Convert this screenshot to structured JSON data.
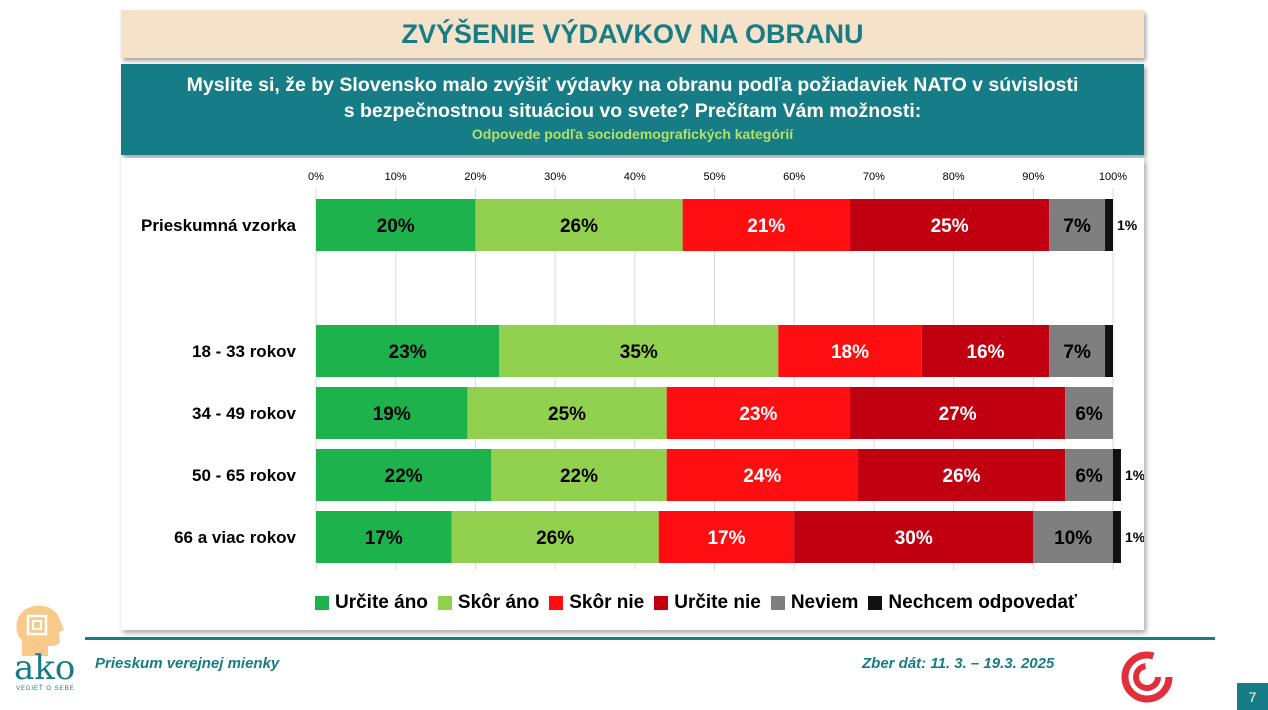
{
  "header": {
    "title": "ZVÝŠENIE VÝDAVKOV NA OBRANU",
    "question_line1": "Myslite si, že by Slovensko malo zvýšiť výdavky na obranu podľa požiadaviek NATO v súvislosti",
    "question_line2": "s bezpečnostnou situáciou vo svete? Prečítam Vám možnosti:",
    "subtitle": "Odpovede podľa sociodemografických kategórií"
  },
  "chart_data": {
    "type": "bar",
    "orientation": "horizontal",
    "stacked": true,
    "percent_scale": true,
    "xlim": [
      0,
      100
    ],
    "x_ticks": [
      "0%",
      "10%",
      "20%",
      "30%",
      "40%",
      "50%",
      "60%",
      "70%",
      "80%",
      "90%",
      "100%"
    ],
    "grid": true,
    "legend_position": "bottom",
    "categories": [
      "Prieskumná vzorka",
      "18 - 33 rokov",
      "34 - 49 rokov",
      "50 - 65 rokov",
      "66 a viac rokov"
    ],
    "series": [
      {
        "name": "Určite áno",
        "color": "#1db24b",
        "label_color": "#000000",
        "values": [
          20,
          23,
          19,
          22,
          17
        ],
        "labels": [
          "20%",
          "23%",
          "19%",
          "22%",
          "17%"
        ]
      },
      {
        "name": "Skôr áno",
        "color": "#92d050",
        "label_color": "#000000",
        "values": [
          26,
          35,
          25,
          22,
          26
        ],
        "labels": [
          "26%",
          "35%",
          "25%",
          "22%",
          "26%"
        ]
      },
      {
        "name": "Skôr nie",
        "color": "#fe0e10",
        "label_color": "#ffffff",
        "values": [
          21,
          18,
          23,
          24,
          17
        ],
        "labels": [
          "21%",
          "18%",
          "23%",
          "24%",
          "17%"
        ]
      },
      {
        "name": "Určite nie",
        "color": "#c00010",
        "label_color": "#ffffff",
        "values": [
          25,
          16,
          27,
          26,
          30
        ],
        "labels": [
          "25%",
          "16%",
          "27%",
          "26%",
          "30%"
        ]
      },
      {
        "name": "Neviem",
        "color": "#7f7f7f",
        "label_color": "#000000",
        "values": [
          7,
          7,
          6,
          6,
          10
        ],
        "labels": [
          "7%",
          "7%",
          "6%",
          "6%",
          "10%"
        ]
      },
      {
        "name": "Nechcem odpovedať",
        "color": "#111111",
        "label_color": "#000000",
        "values": [
          1,
          1,
          0,
          1,
          1
        ],
        "labels": [
          "1%",
          "",
          "",
          "1%",
          "1%"
        ]
      }
    ]
  },
  "footer": {
    "survey_label": "Prieskum verejnej mienky",
    "date_label": "Zber dát: 11. 3. – 19.3. 2025",
    "page_number": "7",
    "logo_word": "ako",
    "logo_tagline": "VEDIEŤ O SEBE"
  }
}
